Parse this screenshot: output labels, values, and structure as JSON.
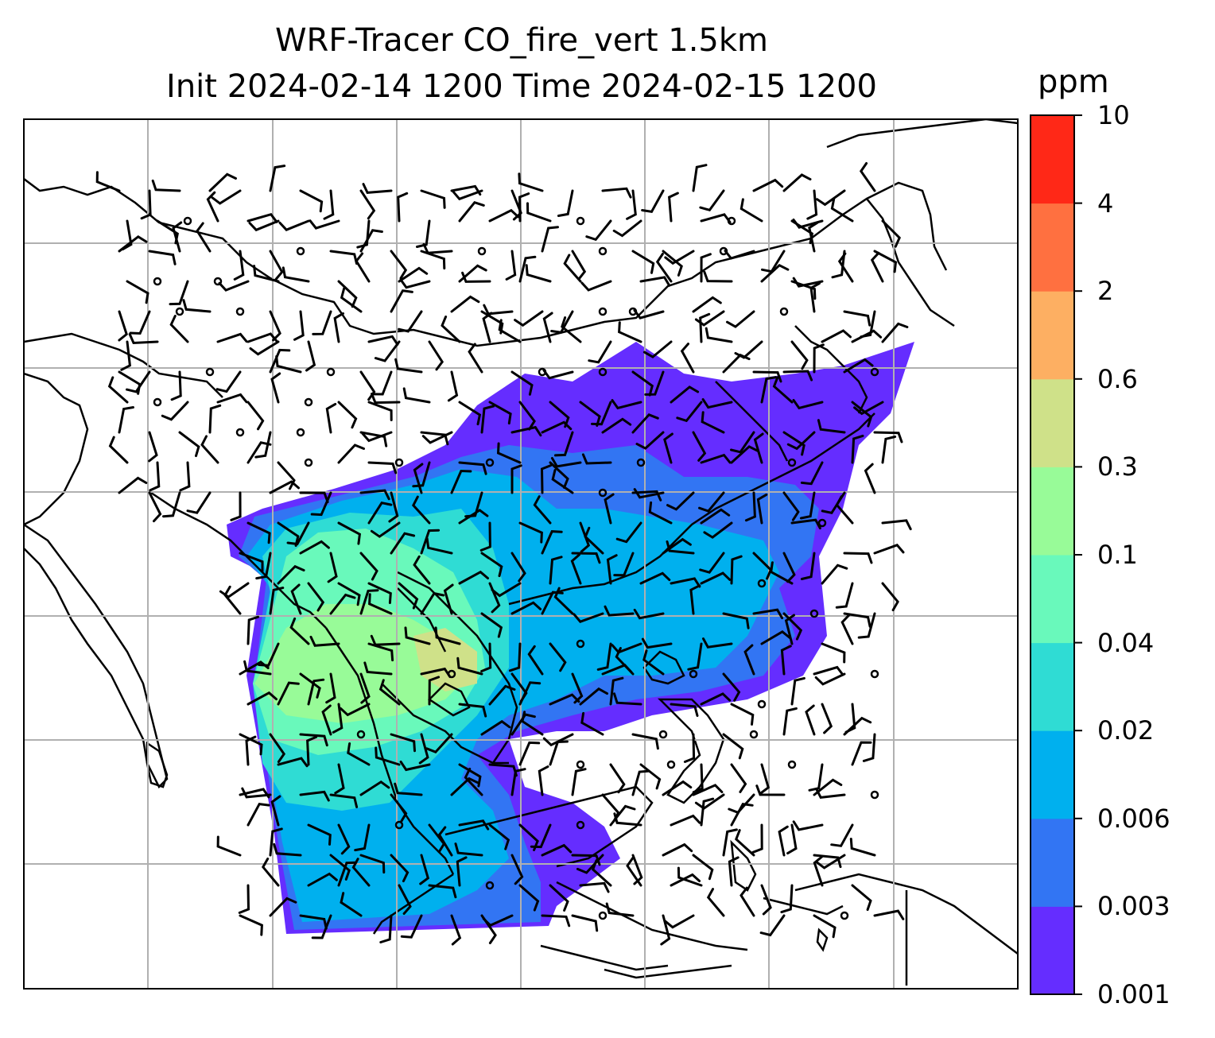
{
  "title_line1": "WRF-Tracer CO_fire_vert 1.5km",
  "title_line2": "Init 2024-02-14 1200 Time 2024-02-15 1200",
  "colorbar": {
    "unit": "ppm",
    "levels": [
      "0.001",
      "0.003",
      "0.006",
      "0.02",
      "0.04",
      "0.1",
      "0.3",
      "0.6",
      "2",
      "4",
      "10"
    ],
    "colors": [
      "#652dff",
      "#3275f3",
      "#00b0ee",
      "#2fdcd4",
      "#69f9bb",
      "#98fb98",
      "#cfe189",
      "#fdaf62",
      "#ff7040",
      "#ff2817"
    ]
  },
  "map": {
    "gridlines": true,
    "coastlines": true,
    "wind_barbs": true
  }
}
